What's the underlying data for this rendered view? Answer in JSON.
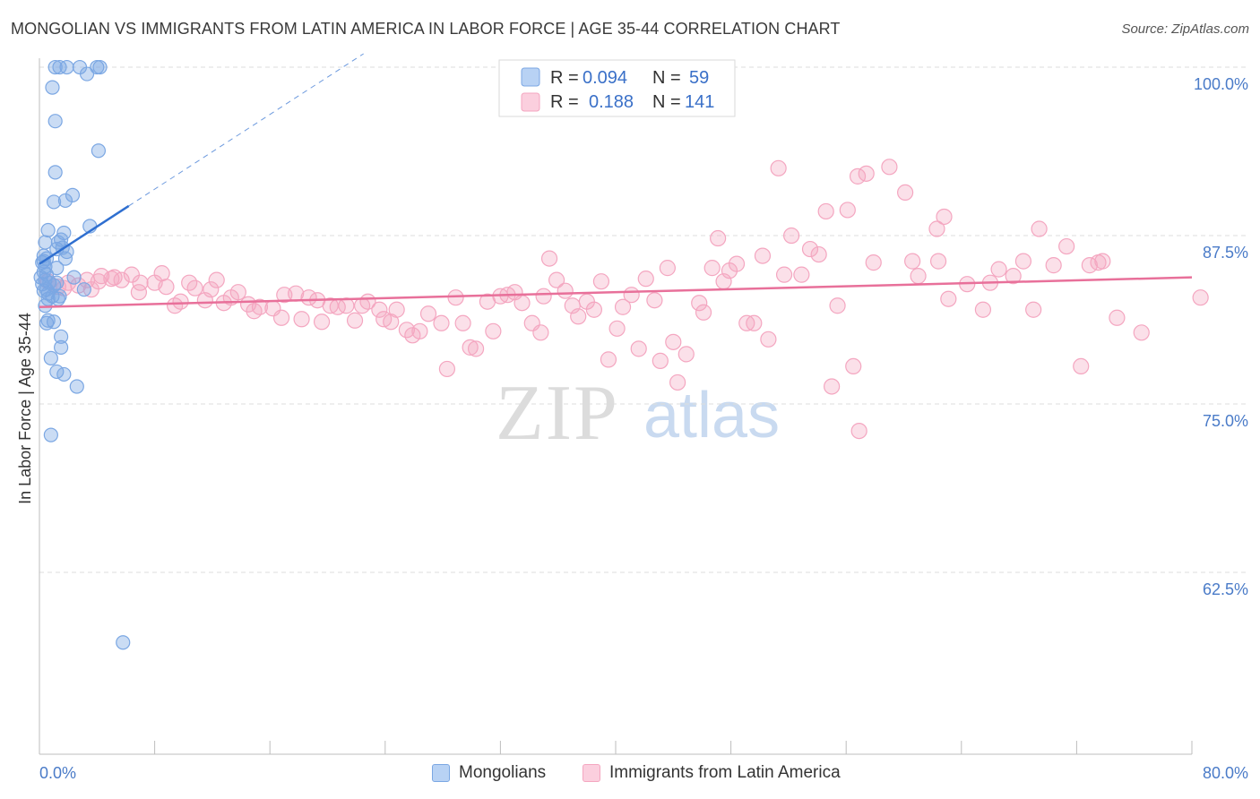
{
  "header": {
    "title": "MONGOLIAN VS IMMIGRANTS FROM LATIN AMERICA IN LABOR FORCE | AGE 35-44 CORRELATION CHART",
    "source": "Source: ZipAtlas.com"
  },
  "watermark": {
    "zip": "ZIP",
    "atlas": "atlas"
  },
  "legend_box": {
    "rows": [
      {
        "r_label": "R =",
        "r_value": "0.094",
        "n_label": "N =",
        "n_value": "59"
      },
      {
        "r_label": "R =",
        "r_value": "0.188",
        "n_label": "N =",
        "n_value": "141"
      }
    ]
  },
  "bottom_legend": {
    "mongolians": "Mongolians",
    "latin": "Immigrants from Latin America"
  },
  "chart_data": {
    "type": "scatter",
    "title": "MONGOLIAN VS IMMIGRANTS FROM LATIN AMERICA IN LABOR FORCE | AGE 35-44 CORRELATION CHART",
    "ylabel": "In Labor Force | Age 35-44",
    "xlim": [
      0,
      80
    ],
    "ylim": [
      50,
      101
    ],
    "x_tick_labels": [
      "0.0%",
      "80.0%"
    ],
    "y_ticks": [
      62.5,
      75.0,
      87.5,
      100.0
    ],
    "y_tick_labels": [
      "62.5%",
      "75.0%",
      "87.5%",
      "100.0%"
    ],
    "grid": "horizontal dashed",
    "legend_placement": "top-center",
    "colors": {
      "mongolians": "#7ba7e3",
      "mongolians_line": "#2f6fd0",
      "latin": "#f4a6c0",
      "latin_line": "#e8709a"
    },
    "series": [
      {
        "name": "Mongolians",
        "R": 0.094,
        "N": 59,
        "trend": {
          "x0": 0.0,
          "y0": 85.4,
          "x1": 6.2,
          "y1": 89.7,
          "dash_to_x": 22.5,
          "dash_to_y": 101.0
        },
        "points": [
          [
            1.1,
            100
          ],
          [
            1.4,
            100
          ],
          [
            1.9,
            100
          ],
          [
            2.8,
            100
          ],
          [
            4.0,
            100
          ],
          [
            4.2,
            100
          ],
          [
            3.3,
            99.5
          ],
          [
            0.9,
            98.5
          ],
          [
            1.1,
            96.0
          ],
          [
            4.1,
            93.8
          ],
          [
            1.1,
            92.2
          ],
          [
            2.3,
            90.5
          ],
          [
            1.0,
            90.0
          ],
          [
            1.8,
            90.1
          ],
          [
            3.5,
            88.2
          ],
          [
            0.6,
            87.9
          ],
          [
            0.4,
            87.0
          ],
          [
            1.3,
            87.0
          ],
          [
            1.5,
            87.2
          ],
          [
            1.7,
            87.7
          ],
          [
            1.2,
            86.5
          ],
          [
            1.6,
            86.6
          ],
          [
            1.9,
            86.3
          ],
          [
            0.3,
            86.0
          ],
          [
            0.5,
            85.8
          ],
          [
            1.8,
            85.8
          ],
          [
            0.2,
            85.5
          ],
          [
            0.4,
            85.2
          ],
          [
            0.3,
            84.8
          ],
          [
            0.5,
            84.6
          ],
          [
            1.2,
            85.1
          ],
          [
            0.1,
            84.4
          ],
          [
            0.4,
            84.2
          ],
          [
            0.2,
            83.9
          ],
          [
            0.7,
            84.0
          ],
          [
            1.0,
            83.8
          ],
          [
            0.5,
            83.5
          ],
          [
            0.3,
            83.4
          ],
          [
            2.4,
            84.4
          ],
          [
            1.2,
            84.0
          ],
          [
            3.1,
            83.5
          ],
          [
            0.6,
            83.2
          ],
          [
            0.9,
            83.0
          ],
          [
            1.4,
            83.0
          ],
          [
            0.6,
            82.8
          ],
          [
            1.3,
            82.8
          ],
          [
            0.4,
            82.3
          ],
          [
            0.6,
            81.2
          ],
          [
            1.0,
            81.1
          ],
          [
            0.5,
            81.0
          ],
          [
            1.5,
            80.0
          ],
          [
            1.5,
            79.2
          ],
          [
            0.8,
            78.4
          ],
          [
            1.2,
            77.4
          ],
          [
            1.7,
            77.2
          ],
          [
            2.6,
            76.3
          ],
          [
            0.8,
            72.7
          ],
          [
            5.8,
            57.3
          ],
          [
            0.3,
            85.6
          ]
        ]
      },
      {
        "name": "Immigrants from Latin America",
        "R": 0.188,
        "N": 141,
        "trend": {
          "x0": 0.0,
          "y0": 82.2,
          "x1": 80.0,
          "y1": 84.4
        },
        "points": [
          [
            0.6,
            84.1
          ],
          [
            1.3,
            83.7
          ],
          [
            1.7,
            83.6
          ],
          [
            2.0,
            84.0
          ],
          [
            2.7,
            83.8
          ],
          [
            3.3,
            84.2
          ],
          [
            3.6,
            83.5
          ],
          [
            4.1,
            84.1
          ],
          [
            4.3,
            84.5
          ],
          [
            5.0,
            84.3
          ],
          [
            5.2,
            84.4
          ],
          [
            5.7,
            84.2
          ],
          [
            6.4,
            84.6
          ],
          [
            7.0,
            84.0
          ],
          [
            6.9,
            83.3
          ],
          [
            8.5,
            84.7
          ],
          [
            8.0,
            84.0
          ],
          [
            8.8,
            83.7
          ],
          [
            9.4,
            82.3
          ],
          [
            9.8,
            82.6
          ],
          [
            10.4,
            84.0
          ],
          [
            10.8,
            83.6
          ],
          [
            11.5,
            82.7
          ],
          [
            11.9,
            83.5
          ],
          [
            12.3,
            84.2
          ],
          [
            12.8,
            82.5
          ],
          [
            13.3,
            82.9
          ],
          [
            13.8,
            83.3
          ],
          [
            14.5,
            82.4
          ],
          [
            14.9,
            81.9
          ],
          [
            15.3,
            82.2
          ],
          [
            16.2,
            82.1
          ],
          [
            16.8,
            81.4
          ],
          [
            17.0,
            83.1
          ],
          [
            17.8,
            83.2
          ],
          [
            18.2,
            81.3
          ],
          [
            18.7,
            82.9
          ],
          [
            19.3,
            82.7
          ],
          [
            19.6,
            81.1
          ],
          [
            20.2,
            82.3
          ],
          [
            20.7,
            82.2
          ],
          [
            21.3,
            82.3
          ],
          [
            21.9,
            81.2
          ],
          [
            22.4,
            82.3
          ],
          [
            22.8,
            82.6
          ],
          [
            23.6,
            82.0
          ],
          [
            23.9,
            81.3
          ],
          [
            24.4,
            81.1
          ],
          [
            24.8,
            82.0
          ],
          [
            25.5,
            80.5
          ],
          [
            25.9,
            80.1
          ],
          [
            26.4,
            80.4
          ],
          [
            27.0,
            81.7
          ],
          [
            27.9,
            81.0
          ],
          [
            28.3,
            77.6
          ],
          [
            28.9,
            82.9
          ],
          [
            29.4,
            81.0
          ],
          [
            29.9,
            79.2
          ],
          [
            30.3,
            79.1
          ],
          [
            31.1,
            82.6
          ],
          [
            31.5,
            80.4
          ],
          [
            32.0,
            83.0
          ],
          [
            32.5,
            83.1
          ],
          [
            33.0,
            83.3
          ],
          [
            33.5,
            82.5
          ],
          [
            34.2,
            81.0
          ],
          [
            35.0,
            83.0
          ],
          [
            34.8,
            80.3
          ],
          [
            35.4,
            85.8
          ],
          [
            35.9,
            84.2
          ],
          [
            36.5,
            83.4
          ],
          [
            37.0,
            82.3
          ],
          [
            37.4,
            81.5
          ],
          [
            38.0,
            82.6
          ],
          [
            38.5,
            82.0
          ],
          [
            39.0,
            84.1
          ],
          [
            39.5,
            78.3
          ],
          [
            40.1,
            80.6
          ],
          [
            40.5,
            82.2
          ],
          [
            41.1,
            83.1
          ],
          [
            41.6,
            79.1
          ],
          [
            42.1,
            84.3
          ],
          [
            42.7,
            82.7
          ],
          [
            43.1,
            78.2
          ],
          [
            43.6,
            85.1
          ],
          [
            44.0,
            79.6
          ],
          [
            44.3,
            76.6
          ],
          [
            44.9,
            78.7
          ],
          [
            45.8,
            82.5
          ],
          [
            46.1,
            81.8
          ],
          [
            46.7,
            85.1
          ],
          [
            47.5,
            84.1
          ],
          [
            47.1,
            87.3
          ],
          [
            47.9,
            84.9
          ],
          [
            48.4,
            85.4
          ],
          [
            49.1,
            81.0
          ],
          [
            49.6,
            81.0
          ],
          [
            50.2,
            86.0
          ],
          [
            50.6,
            79.8
          ],
          [
            51.3,
            92.5
          ],
          [
            51.7,
            84.6
          ],
          [
            52.2,
            87.5
          ],
          [
            52.9,
            84.6
          ],
          [
            53.5,
            86.5
          ],
          [
            54.1,
            86.1
          ],
          [
            54.6,
            89.3
          ],
          [
            55.0,
            76.3
          ],
          [
            55.4,
            82.3
          ],
          [
            56.1,
            89.4
          ],
          [
            56.5,
            77.8
          ],
          [
            56.8,
            91.9
          ],
          [
            57.4,
            92.1
          ],
          [
            57.9,
            85.5
          ],
          [
            56.9,
            73.0
          ],
          [
            59.0,
            92.6
          ],
          [
            60.1,
            90.7
          ],
          [
            60.6,
            85.6
          ],
          [
            61.0,
            84.5
          ],
          [
            62.3,
            88.0
          ],
          [
            62.8,
            88.9
          ],
          [
            63.1,
            82.8
          ],
          [
            64.4,
            83.9
          ],
          [
            65.5,
            82.0
          ],
          [
            66.0,
            84.0
          ],
          [
            66.6,
            85.0
          ],
          [
            67.6,
            84.5
          ],
          [
            68.3,
            85.6
          ],
          [
            69.0,
            82.0
          ],
          [
            69.4,
            88.0
          ],
          [
            70.4,
            85.3
          ],
          [
            71.3,
            86.7
          ],
          [
            72.3,
            77.8
          ],
          [
            72.9,
            85.3
          ],
          [
            73.5,
            85.5
          ],
          [
            73.8,
            85.6
          ],
          [
            74.8,
            81.4
          ],
          [
            76.5,
            80.3
          ],
          [
            80.6,
            82.9
          ],
          [
            62.4,
            85.6
          ]
        ]
      }
    ]
  }
}
